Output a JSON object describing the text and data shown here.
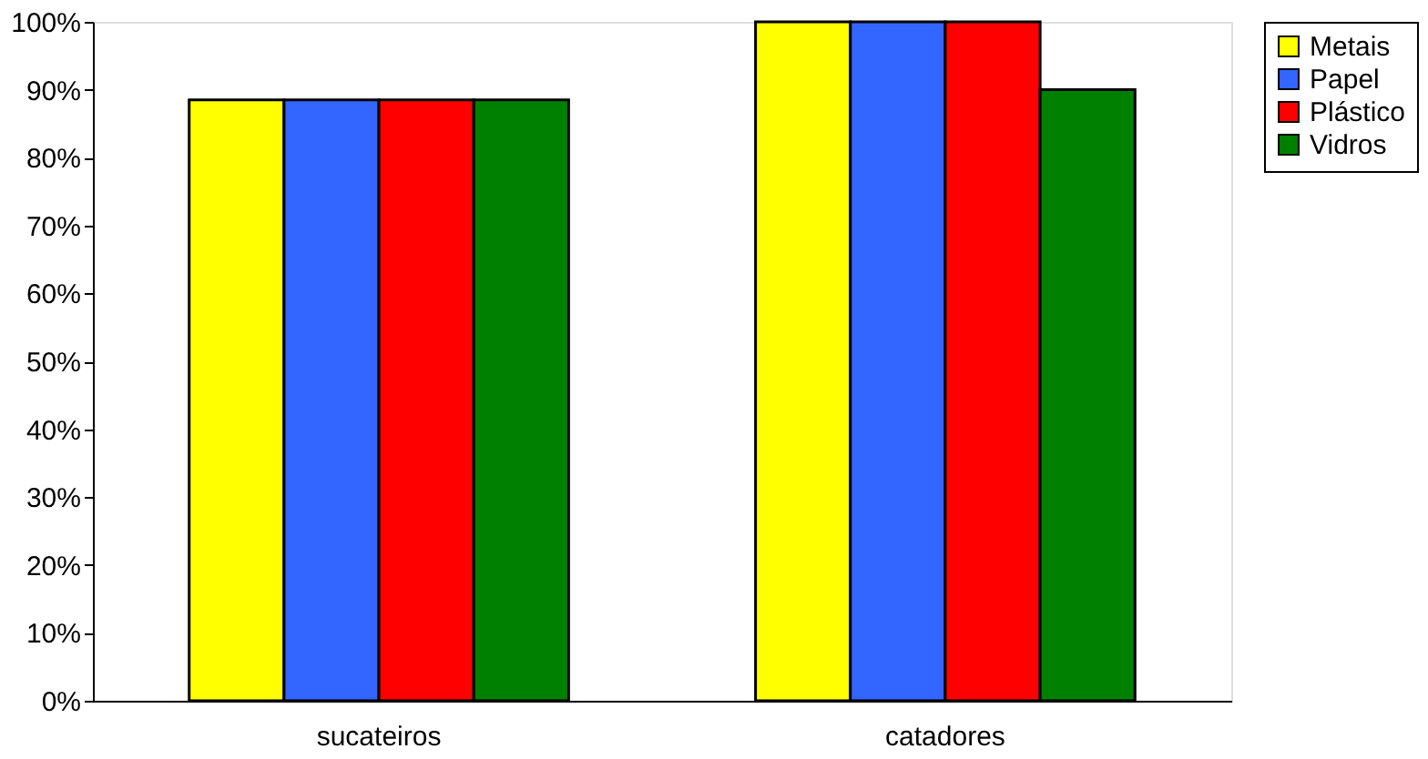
{
  "chart_data": {
    "type": "bar",
    "categories": [
      "sucateiros",
      "catadores"
    ],
    "series": [
      {
        "name": "Metais",
        "color": "#ffff00",
        "values": [
          88.5,
          100
        ]
      },
      {
        "name": "Papel",
        "color": "#3366ff",
        "values": [
          88.5,
          100
        ]
      },
      {
        "name": "Plástico",
        "color": "#ff0000",
        "values": [
          88.5,
          100
        ]
      },
      {
        "name": "Vidros",
        "color": "#008000",
        "values": [
          88.5,
          90
        ]
      }
    ],
    "ylim": [
      0,
      100
    ],
    "yticks": [
      {
        "value": 0,
        "label": "0%"
      },
      {
        "value": 10,
        "label": "10%"
      },
      {
        "value": 20,
        "label": "20%"
      },
      {
        "value": 30,
        "label": "30%"
      },
      {
        "value": 40,
        "label": "40%"
      },
      {
        "value": 50,
        "label": "50%"
      },
      {
        "value": 60,
        "label": "60%"
      },
      {
        "value": 70,
        "label": "70%"
      },
      {
        "value": 80,
        "label": "80%"
      },
      {
        "value": 90,
        "label": "90%"
      },
      {
        "value": 100,
        "label": "100%"
      }
    ],
    "grid": false,
    "legend": "right"
  }
}
